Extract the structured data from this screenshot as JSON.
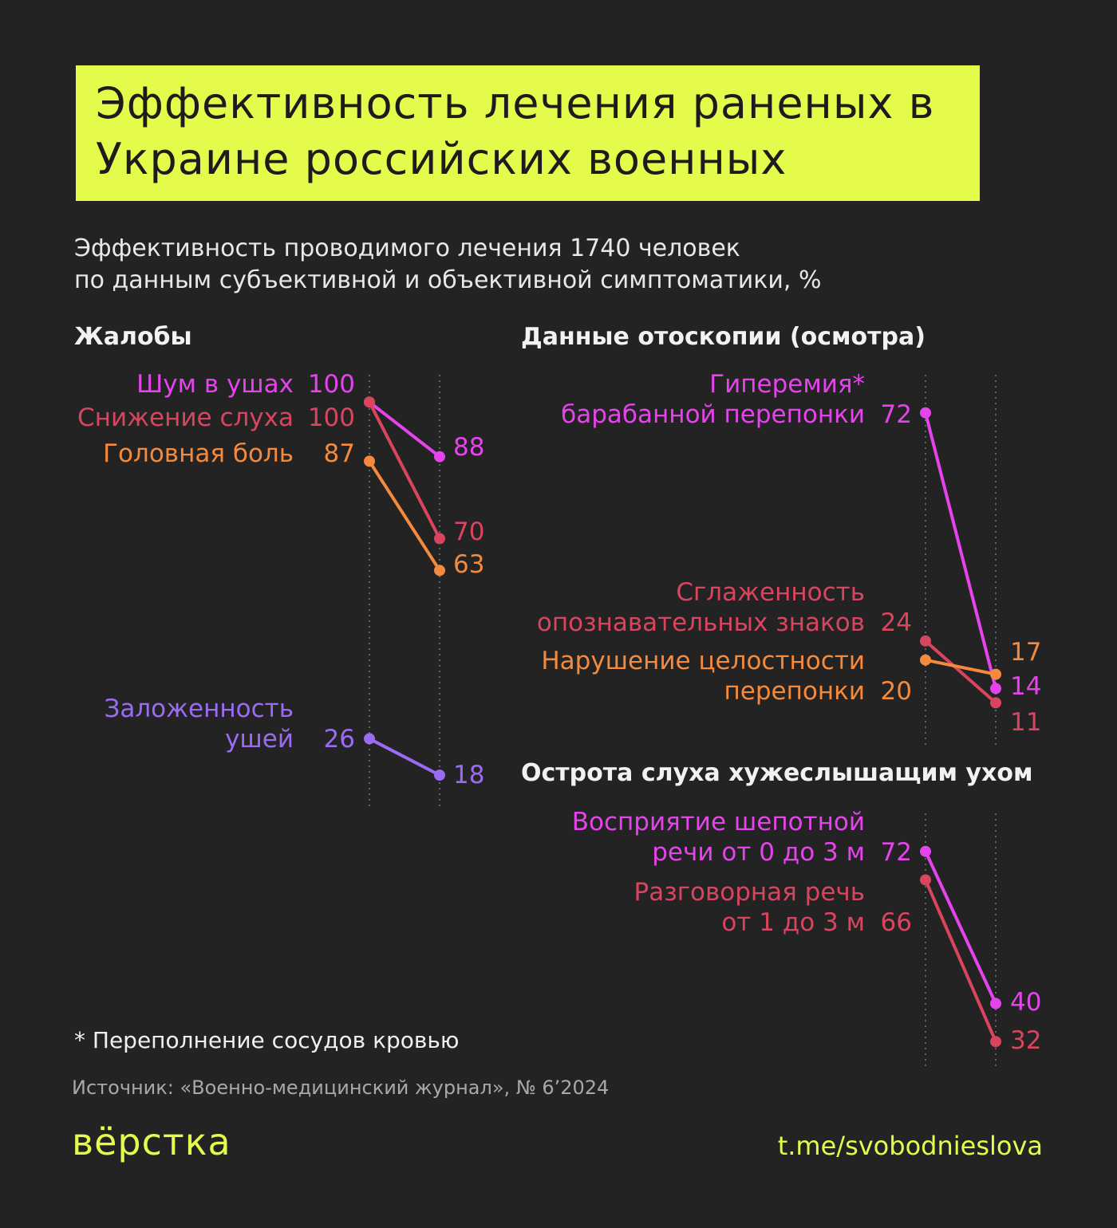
{
  "title": "Эффективность лечения раненых в Украине российских военных",
  "subtitle": "Эффективность проводимого лечения 1740 человек\nпо данным субъективной и объективной симптоматики, %",
  "footnote": "* Переполнение сосудов кровью",
  "source": "Источник: «Военно-медицинский журнал», № 6’2024",
  "brand": "вёрстка",
  "link": "t.me/svobodnieslova",
  "chart_data": [
    {
      "type": "slope",
      "title": "Жалобы",
      "ylim": [
        11,
        106
      ],
      "series": [
        {
          "name": "Шум в ушах",
          "color": "#e544ec",
          "values": [
            100,
            88
          ]
        },
        {
          "name": "Снижение слуха",
          "color": "#d9455f",
          "values": [
            100,
            70
          ]
        },
        {
          "name": "Головная боль",
          "color": "#f68a3c",
          "values": [
            87,
            63
          ]
        },
        {
          "name": "Заложенность\nушей",
          "color": "#9a6cf2",
          "values": [
            26,
            18
          ]
        }
      ]
    },
    {
      "type": "slope",
      "title": "Данные отоскопии (осмотра)",
      "ylim": [
        2,
        80
      ],
      "series": [
        {
          "name": "Гиперемия*\nбарабанной перепонки",
          "color": "#e544ec",
          "values": [
            72,
            14
          ]
        },
        {
          "name": "Сглаженность\nопознавательных знаков",
          "color": "#d9455f",
          "values": [
            24,
            11
          ]
        },
        {
          "name": "Нарушение целостности\nперепонки",
          "color": "#f68a3c",
          "values": [
            20,
            17
          ]
        }
      ]
    },
    {
      "type": "slope",
      "title": "Острота слуха хужеслышащим ухом",
      "ylim": [
        26,
        80
      ],
      "series": [
        {
          "name": "Восприятие шепотной\nречи от 0 до 3 м",
          "color": "#e544ec",
          "values": [
            72,
            40
          ]
        },
        {
          "name": "Разговорная речь\nот 1 до 3 м",
          "color": "#d9455f",
          "values": [
            66,
            32
          ]
        }
      ]
    }
  ]
}
